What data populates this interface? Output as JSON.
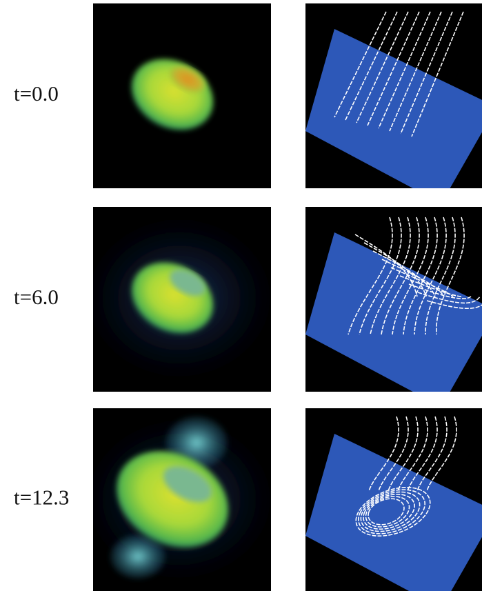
{
  "rows": [
    {
      "label": "t=0.0"
    },
    {
      "label": "t=6.0"
    },
    {
      "label": "t=12.3"
    }
  ]
}
